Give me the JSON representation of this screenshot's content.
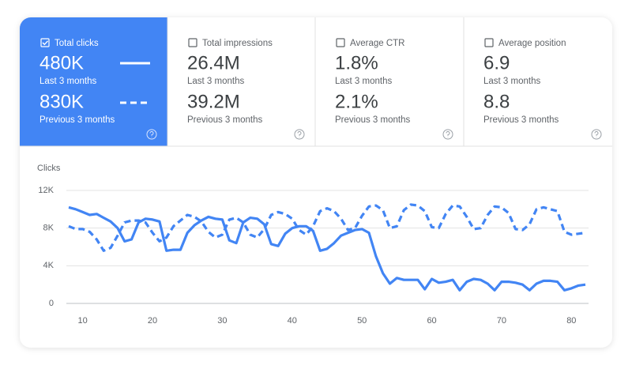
{
  "metrics": [
    {
      "label": "Total clicks",
      "value": "480K",
      "period": "Last 3 months",
      "previous_value": "830K",
      "previous_period": "Previous 3 months"
    },
    {
      "label": "Total impressions",
      "value": "26.4M",
      "period": "Last 3 months",
      "previous_value": "39.2M",
      "previous_period": "Previous 3 months"
    },
    {
      "label": "Average CTR",
      "value": "1.8%",
      "period": "Last 3 months",
      "previous_value": "2.1%",
      "previous_period": "Previous 3 months"
    },
    {
      "label": "Average position",
      "value": "6.9",
      "period": "Last 3 months",
      "previous_value": "8.8",
      "previous_period": "Previous 3 months"
    }
  ],
  "chart_data": {
    "type": "line",
    "y_label": "Clicks",
    "x": [
      8,
      9,
      10,
      11,
      12,
      13,
      14,
      15,
      16,
      17,
      18,
      19,
      20,
      21,
      22,
      23,
      24,
      25,
      26,
      27,
      28,
      29,
      30,
      31,
      32,
      33,
      34,
      35,
      36,
      37,
      38,
      39,
      40,
      41,
      42,
      43,
      44,
      45,
      46,
      47,
      48,
      49,
      50,
      51,
      52,
      53,
      54,
      55,
      56,
      57,
      58,
      59,
      60,
      61,
      62,
      63,
      64,
      65,
      66,
      67,
      68,
      69,
      70,
      71,
      72,
      73,
      74,
      75,
      76,
      77,
      78,
      79,
      80,
      81,
      82
    ],
    "series": [
      {
        "color": "#4285f4",
        "dashed": false,
        "values": [
          10200,
          10000,
          9700,
          9400,
          9500,
          9100,
          8700,
          8000,
          6600,
          6800,
          8600,
          9000,
          8900,
          8700,
          5600,
          5700,
          5700,
          7500,
          8300,
          8800,
          9200,
          9000,
          8900,
          6700,
          6400,
          8600,
          9100,
          9000,
          8400,
          6300,
          6100,
          7400,
          8000,
          8200,
          8200,
          7700,
          5600,
          5800,
          6400,
          7200,
          7500,
          7800,
          7900,
          7500,
          5000,
          3200,
          2100,
          2700,
          2500,
          2500,
          2500,
          1500,
          2600,
          2200,
          2300,
          2500,
          1400,
          2300,
          2600,
          2500,
          2100,
          1400,
          2300,
          2300,
          2200,
          2000,
          1400,
          2100,
          2400,
          2400,
          2300,
          1400,
          1600,
          1900,
          2000
        ]
      },
      {
        "color": "#4285f4",
        "dashed": true,
        "values": [
          8200,
          7900,
          7900,
          7600,
          6800,
          5600,
          5900,
          7200,
          8600,
          8800,
          8800,
          8600,
          7500,
          6600,
          7000,
          8200,
          8800,
          9400,
          9200,
          8700,
          7600,
          7000,
          7300,
          8900,
          9100,
          8600,
          7300,
          7000,
          7900,
          9400,
          9700,
          9500,
          9000,
          7800,
          7300,
          8200,
          9800,
          10100,
          9800,
          9000,
          7800,
          8000,
          9300,
          10300,
          10400,
          9900,
          8000,
          8200,
          9900,
          10500,
          10400,
          9800,
          8100,
          8000,
          9500,
          10400,
          10300,
          9200,
          7900,
          8000,
          9400,
          10300,
          10200,
          9600,
          7900,
          7800,
          8400,
          10000,
          10200,
          10000,
          9800,
          7600,
          7300,
          7400,
          7500
        ]
      }
    ],
    "xlim": [
      8,
      82
    ],
    "xticks": [
      10,
      20,
      30,
      40,
      50,
      60,
      70,
      80
    ],
    "ylim": [
      0,
      12000
    ],
    "yticks": [
      0,
      {
        "value": 4000,
        "label": "4K"
      },
      {
        "value": 8000,
        "label": "8K"
      },
      {
        "value": 12000,
        "label": "12K"
      }
    ],
    "grid": true
  }
}
